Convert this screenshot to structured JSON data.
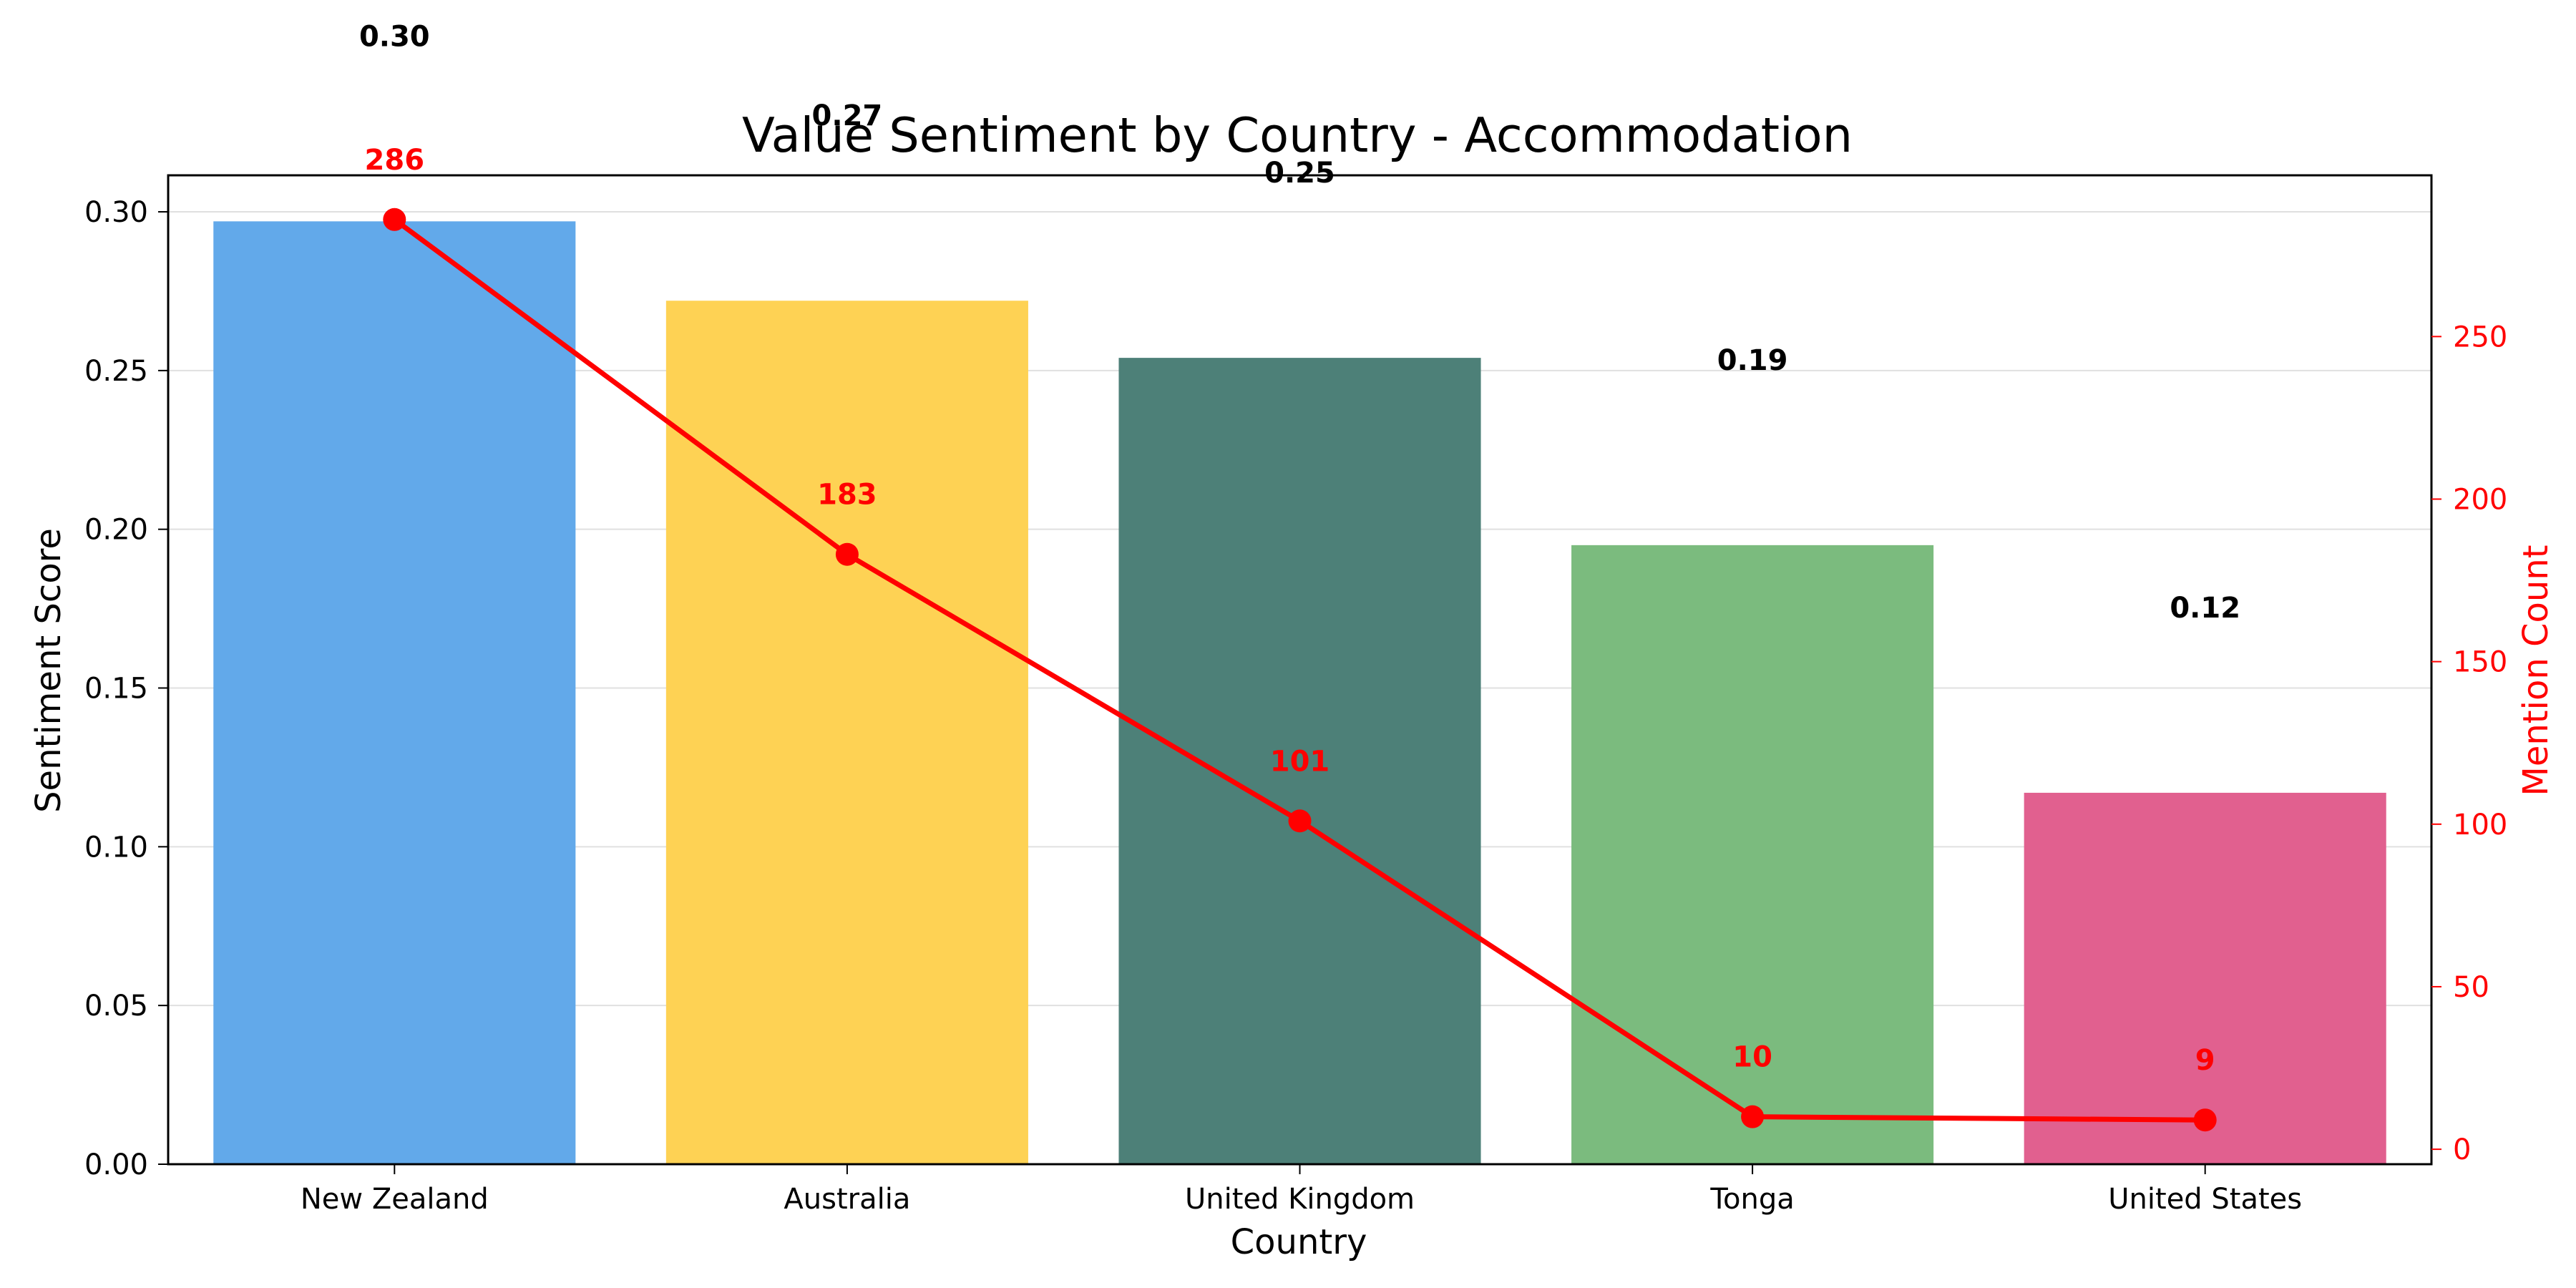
{
  "chart_data": {
    "type": "bar",
    "title": "Value Sentiment by Country - Accommodation",
    "xlabel": "Country",
    "ylabel": "Sentiment Score",
    "ylabel_right": "Mention Count",
    "categories": [
      "New Zealand",
      "Australia",
      "United Kingdom",
      "Tonga",
      "United States"
    ],
    "series": [
      {
        "kind": "bar",
        "axis": "left",
        "values": [
          0.297,
          0.272,
          0.254,
          0.195,
          0.117
        ],
        "value_labels": [
          "0.30",
          "0.27",
          "0.25",
          "0.19",
          "0.12"
        ],
        "colors": [
          "#62a9ea",
          "#fed254",
          "#4d8078",
          "#7bbb7e",
          "#e1608f"
        ]
      },
      {
        "kind": "line",
        "axis": "right",
        "values": [
          286,
          183,
          101,
          10,
          9
        ],
        "value_labels": [
          "286",
          "183",
          "101",
          "10",
          "9"
        ],
        "color": "#ff0000"
      }
    ],
    "ylim": [
      0,
      0.3115
    ],
    "yticks": [
      "0.00",
      "0.05",
      "0.10",
      "0.15",
      "0.20",
      "0.25",
      "0.30"
    ],
    "y2lim": [
      -4.6,
      299.6
    ],
    "y2ticks": [
      "0",
      "50",
      "100",
      "150",
      "200",
      "250"
    ],
    "grid": "horizontal",
    "legend": "none"
  }
}
